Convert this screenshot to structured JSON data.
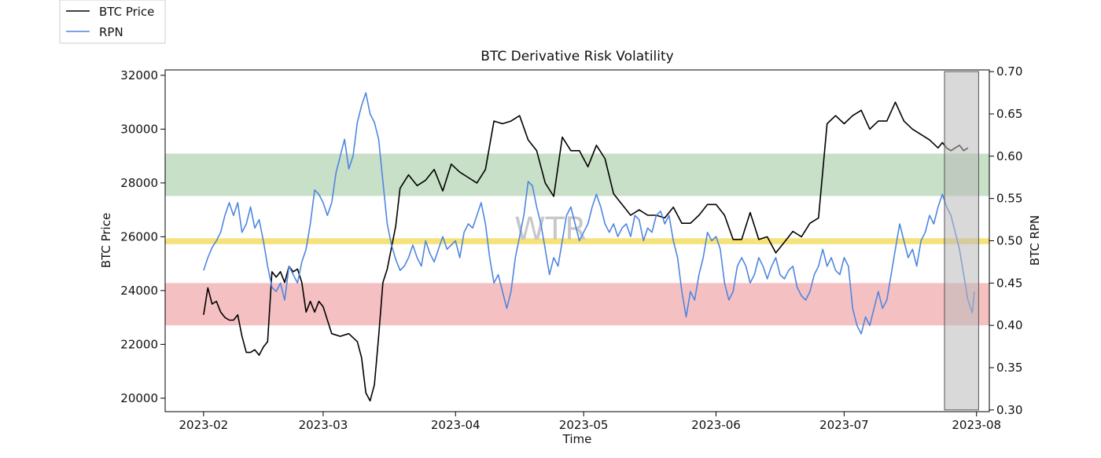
{
  "chart_data": {
    "type": "line",
    "title": "BTC Derivative Risk Volatility",
    "xlabel": "Time",
    "ylabel_left": "BTC Price",
    "ylabel_right": "BTC RPN",
    "watermark": "WTR",
    "x_ticks": [
      "2023-02",
      "2023-03",
      "2023-04",
      "2023-05",
      "2023-06",
      "2023-07",
      "2023-08"
    ],
    "x_tick_days": [
      0,
      28,
      59,
      89,
      120,
      150,
      181
    ],
    "xlim_days": [
      -9,
      184
    ],
    "ylim_left": [
      19500,
      32200
    ],
    "ylim_right": [
      0.298,
      0.702
    ],
    "yticks_left": [
      20000,
      22000,
      24000,
      26000,
      28000,
      30000,
      32000
    ],
    "yticks_right": [
      0.3,
      0.35,
      0.4,
      0.45,
      0.5,
      0.55,
      0.6,
      0.65,
      0.7
    ],
    "legend": [
      {
        "label": "BTC Price",
        "color": "#000000"
      },
      {
        "label": "RPN",
        "color": "#4f86e0"
      }
    ],
    "bands": [
      {
        "name": "high-risk-band",
        "axis": "right",
        "from": 0.553,
        "to": 0.603,
        "color": "#c8dfc8"
      },
      {
        "name": "neutral-band",
        "axis": "right",
        "from": 0.496,
        "to": 0.503,
        "color": "#f5e27a"
      },
      {
        "name": "low-risk-band",
        "axis": "right",
        "from": 0.4,
        "to": 0.45,
        "color": "#f5c0c2"
      }
    ],
    "highlight": {
      "name": "recent-window",
      "from_day": 173.5,
      "to_day": 181.5,
      "color": "#b9b9b9"
    },
    "series": [
      {
        "name": "BTC Price",
        "axis": "left",
        "color": "#000000",
        "points": [
          [
            0,
            23100
          ],
          [
            1,
            24100
          ],
          [
            2,
            23500
          ],
          [
            3,
            23600
          ],
          [
            4,
            23200
          ],
          [
            5,
            23000
          ],
          [
            6,
            22900
          ],
          [
            7,
            22900
          ],
          [
            8,
            23100
          ],
          [
            9,
            22300
          ],
          [
            10,
            21700
          ],
          [
            11,
            21700
          ],
          [
            12,
            21800
          ],
          [
            13,
            21600
          ],
          [
            14,
            21900
          ],
          [
            15,
            22100
          ],
          [
            16,
            24700
          ],
          [
            17,
            24500
          ],
          [
            18,
            24700
          ],
          [
            19,
            24300
          ],
          [
            20,
            24900
          ],
          [
            21,
            24700
          ],
          [
            22,
            24800
          ],
          [
            23,
            24300
          ],
          [
            24,
            23200
          ],
          [
            25,
            23600
          ],
          [
            26,
            23200
          ],
          [
            27,
            23600
          ],
          [
            28,
            23400
          ],
          [
            30,
            22400
          ],
          [
            32,
            22300
          ],
          [
            34,
            22400
          ],
          [
            36,
            22100
          ],
          [
            37,
            21500
          ],
          [
            38,
            20200
          ],
          [
            39,
            19900
          ],
          [
            40,
            20500
          ],
          [
            41,
            22300
          ],
          [
            42,
            24300
          ],
          [
            43,
            24800
          ],
          [
            45,
            26400
          ],
          [
            46,
            27800
          ],
          [
            48,
            28300
          ],
          [
            50,
            27900
          ],
          [
            52,
            28100
          ],
          [
            54,
            28500
          ],
          [
            56,
            27700
          ],
          [
            58,
            28700
          ],
          [
            60,
            28400
          ],
          [
            62,
            28200
          ],
          [
            64,
            28000
          ],
          [
            66,
            28500
          ],
          [
            68,
            30300
          ],
          [
            70,
            30200
          ],
          [
            72,
            30300
          ],
          [
            74,
            30500
          ],
          [
            76,
            29600
          ],
          [
            78,
            29200
          ],
          [
            80,
            28000
          ],
          [
            82,
            27500
          ],
          [
            84,
            29700
          ],
          [
            86,
            29200
          ],
          [
            88,
            29200
          ],
          [
            90,
            28600
          ],
          [
            92,
            29400
          ],
          [
            94,
            28900
          ],
          [
            96,
            27600
          ],
          [
            98,
            27200
          ],
          [
            100,
            26800
          ],
          [
            102,
            27000
          ],
          [
            104,
            26800
          ],
          [
            106,
            26800
          ],
          [
            108,
            26700
          ],
          [
            110,
            27100
          ],
          [
            112,
            26500
          ],
          [
            114,
            26500
          ],
          [
            116,
            26800
          ],
          [
            118,
            27200
          ],
          [
            120,
            27200
          ],
          [
            122,
            26800
          ],
          [
            124,
            25900
          ],
          [
            126,
            25900
          ],
          [
            128,
            26900
          ],
          [
            130,
            25900
          ],
          [
            132,
            26000
          ],
          [
            134,
            25400
          ],
          [
            136,
            25800
          ],
          [
            138,
            26200
          ],
          [
            140,
            26000
          ],
          [
            142,
            26500
          ],
          [
            144,
            26700
          ],
          [
            146,
            30200
          ],
          [
            148,
            30500
          ],
          [
            150,
            30200
          ],
          [
            152,
            30500
          ],
          [
            154,
            30700
          ],
          [
            156,
            30000
          ],
          [
            158,
            30300
          ],
          [
            160,
            30300
          ],
          [
            162,
            31000
          ],
          [
            164,
            30300
          ],
          [
            166,
            30000
          ],
          [
            168,
            29800
          ],
          [
            170,
            29600
          ],
          [
            172,
            29300
          ],
          [
            173,
            29500
          ],
          [
            174,
            29300
          ],
          [
            175,
            29200
          ],
          [
            176,
            29300
          ],
          [
            177,
            29400
          ],
          [
            178,
            29200
          ],
          [
            179,
            29300
          ]
        ]
      },
      {
        "name": "RPN",
        "axis": "right",
        "color": "#4f86e0",
        "points": [
          [
            0,
            0.465
          ],
          [
            1,
            0.48
          ],
          [
            2,
            0.492
          ],
          [
            3,
            0.5
          ],
          [
            4,
            0.51
          ],
          [
            5,
            0.53
          ],
          [
            6,
            0.545
          ],
          [
            7,
            0.53
          ],
          [
            8,
            0.545
          ],
          [
            9,
            0.51
          ],
          [
            10,
            0.52
          ],
          [
            11,
            0.54
          ],
          [
            12,
            0.515
          ],
          [
            13,
            0.525
          ],
          [
            14,
            0.5
          ],
          [
            15,
            0.47
          ],
          [
            16,
            0.445
          ],
          [
            17,
            0.44
          ],
          [
            18,
            0.45
          ],
          [
            19,
            0.43
          ],
          [
            20,
            0.47
          ],
          [
            21,
            0.46
          ],
          [
            22,
            0.45
          ],
          [
            23,
            0.475
          ],
          [
            24,
            0.49
          ],
          [
            25,
            0.52
          ],
          [
            26,
            0.56
          ],
          [
            27,
            0.555
          ],
          [
            28,
            0.545
          ],
          [
            29,
            0.53
          ],
          [
            30,
            0.545
          ],
          [
            31,
            0.58
          ],
          [
            32,
            0.6
          ],
          [
            33,
            0.62
          ],
          [
            34,
            0.585
          ],
          [
            35,
            0.6
          ],
          [
            36,
            0.64
          ],
          [
            37,
            0.66
          ],
          [
            38,
            0.675
          ],
          [
            39,
            0.65
          ],
          [
            40,
            0.64
          ],
          [
            41,
            0.62
          ],
          [
            42,
            0.57
          ],
          [
            43,
            0.52
          ],
          [
            44,
            0.495
          ],
          [
            45,
            0.478
          ],
          [
            46,
            0.465
          ],
          [
            47,
            0.47
          ],
          [
            48,
            0.48
          ],
          [
            49,
            0.495
          ],
          [
            50,
            0.48
          ],
          [
            51,
            0.47
          ],
          [
            52,
            0.5
          ],
          [
            53,
            0.485
          ],
          [
            54,
            0.475
          ],
          [
            55,
            0.49
          ],
          [
            56,
            0.505
          ],
          [
            57,
            0.49
          ],
          [
            58,
            0.495
          ],
          [
            59,
            0.5
          ],
          [
            60,
            0.48
          ],
          [
            61,
            0.51
          ],
          [
            62,
            0.52
          ],
          [
            63,
            0.515
          ],
          [
            64,
            0.53
          ],
          [
            65,
            0.545
          ],
          [
            66,
            0.52
          ],
          [
            67,
            0.48
          ],
          [
            68,
            0.45
          ],
          [
            69,
            0.46
          ],
          [
            70,
            0.44
          ],
          [
            71,
            0.42
          ],
          [
            72,
            0.44
          ],
          [
            73,
            0.48
          ],
          [
            74,
            0.505
          ],
          [
            75,
            0.53
          ],
          [
            76,
            0.57
          ],
          [
            77,
            0.565
          ],
          [
            78,
            0.54
          ],
          [
            79,
            0.52
          ],
          [
            80,
            0.49
          ],
          [
            81,
            0.46
          ],
          [
            82,
            0.48
          ],
          [
            83,
            0.47
          ],
          [
            84,
            0.5
          ],
          [
            85,
            0.53
          ],
          [
            86,
            0.54
          ],
          [
            87,
            0.52
          ],
          [
            88,
            0.5
          ],
          [
            89,
            0.51
          ],
          [
            90,
            0.52
          ],
          [
            91,
            0.54
          ],
          [
            92,
            0.555
          ],
          [
            93,
            0.54
          ],
          [
            94,
            0.52
          ],
          [
            95,
            0.51
          ],
          [
            96,
            0.52
          ],
          [
            97,
            0.505
          ],
          [
            98,
            0.515
          ],
          [
            99,
            0.52
          ],
          [
            100,
            0.505
          ],
          [
            101,
            0.53
          ],
          [
            102,
            0.525
          ],
          [
            103,
            0.5
          ],
          [
            104,
            0.515
          ],
          [
            105,
            0.51
          ],
          [
            106,
            0.53
          ],
          [
            107,
            0.535
          ],
          [
            108,
            0.52
          ],
          [
            109,
            0.53
          ],
          [
            110,
            0.5
          ],
          [
            111,
            0.48
          ],
          [
            112,
            0.44
          ],
          [
            113,
            0.41
          ],
          [
            114,
            0.44
          ],
          [
            115,
            0.43
          ],
          [
            116,
            0.46
          ],
          [
            117,
            0.48
          ],
          [
            118,
            0.51
          ],
          [
            119,
            0.5
          ],
          [
            120,
            0.505
          ],
          [
            121,
            0.49
          ],
          [
            122,
            0.45
          ],
          [
            123,
            0.43
          ],
          [
            124,
            0.44
          ],
          [
            125,
            0.47
          ],
          [
            126,
            0.48
          ],
          [
            127,
            0.47
          ],
          [
            128,
            0.45
          ],
          [
            129,
            0.46
          ],
          [
            130,
            0.48
          ],
          [
            131,
            0.47
          ],
          [
            132,
            0.455
          ],
          [
            133,
            0.47
          ],
          [
            134,
            0.48
          ],
          [
            135,
            0.46
          ],
          [
            136,
            0.455
          ],
          [
            137,
            0.465
          ],
          [
            138,
            0.47
          ],
          [
            139,
            0.445
          ],
          [
            140,
            0.435
          ],
          [
            141,
            0.43
          ],
          [
            142,
            0.44
          ],
          [
            143,
            0.46
          ],
          [
            144,
            0.47
          ],
          [
            145,
            0.49
          ],
          [
            146,
            0.47
          ],
          [
            147,
            0.48
          ],
          [
            148,
            0.465
          ],
          [
            149,
            0.46
          ],
          [
            150,
            0.48
          ],
          [
            151,
            0.47
          ],
          [
            152,
            0.42
          ],
          [
            153,
            0.4
          ],
          [
            154,
            0.39
          ],
          [
            155,
            0.41
          ],
          [
            156,
            0.4
          ],
          [
            157,
            0.42
          ],
          [
            158,
            0.44
          ],
          [
            159,
            0.42
          ],
          [
            160,
            0.43
          ],
          [
            161,
            0.46
          ],
          [
            162,
            0.49
          ],
          [
            163,
            0.52
          ],
          [
            164,
            0.5
          ],
          [
            165,
            0.48
          ],
          [
            166,
            0.49
          ],
          [
            167,
            0.47
          ],
          [
            168,
            0.5
          ],
          [
            169,
            0.51
          ],
          [
            170,
            0.53
          ],
          [
            171,
            0.52
          ],
          [
            172,
            0.54
          ],
          [
            173,
            0.555
          ],
          [
            174,
            0.54
          ],
          [
            175,
            0.53
          ],
          [
            176,
            0.51
          ],
          [
            177,
            0.49
          ],
          [
            178,
            0.46
          ],
          [
            179,
            0.43
          ],
          [
            180,
            0.415
          ],
          [
            180.5,
            0.44
          ]
        ]
      }
    ]
  }
}
